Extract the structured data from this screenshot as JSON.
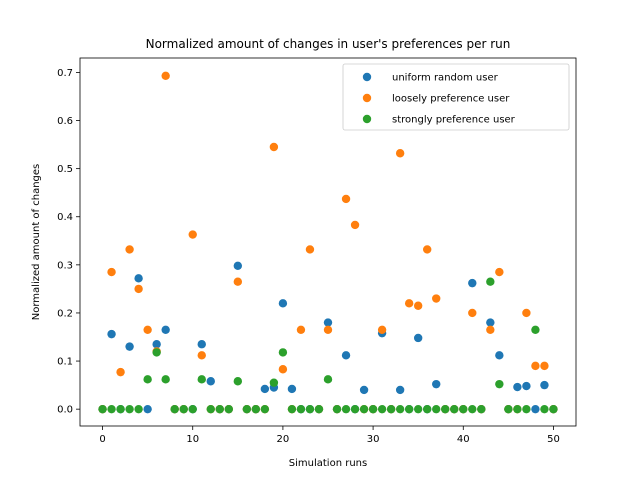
{
  "chart_data": {
    "type": "scatter",
    "title": "Normalized amount of changes in user's preferences per run",
    "xlabel": "Simulation runs",
    "ylabel": "Normalized amount of changes",
    "xlim": [
      -2.5,
      52.5
    ],
    "ylim": [
      -0.035,
      0.73
    ],
    "xticks": [
      "0",
      "10",
      "20",
      "30",
      "40",
      "50"
    ],
    "yticks": [
      "0.0",
      "0.1",
      "0.2",
      "0.3",
      "0.4",
      "0.5",
      "0.6",
      "0.7"
    ],
    "grid": false,
    "legend_position": "top-right",
    "x": [
      0,
      1,
      2,
      3,
      4,
      5,
      6,
      7,
      8,
      9,
      10,
      11,
      12,
      13,
      14,
      15,
      16,
      17,
      18,
      19,
      20,
      21,
      22,
      23,
      24,
      25,
      26,
      27,
      28,
      29,
      30,
      31,
      32,
      33,
      34,
      35,
      36,
      37,
      38,
      39,
      40,
      41,
      42,
      43,
      44,
      45,
      46,
      47,
      48,
      49,
      50
    ],
    "series": [
      {
        "name": "uniform random user",
        "color": "#1f77b4",
        "values": [
          0,
          0.156,
          0,
          0.13,
          0.272,
          0,
          0.135,
          0.165,
          0,
          0,
          0,
          0.135,
          0.058,
          0,
          0,
          0.298,
          0,
          0,
          0.042,
          0.045,
          0.22,
          0.042,
          0,
          0,
          0,
          0.18,
          0,
          0.112,
          0,
          0.04,
          0,
          0.158,
          0,
          0.04,
          0,
          0.148,
          0,
          0.052,
          0,
          0,
          0,
          0.262,
          0,
          0.18,
          0.112,
          0,
          0.046,
          0.048,
          0,
          0.05,
          0
        ]
      },
      {
        "name": "loosely preference user",
        "color": "#ff7f0e",
        "values": [
          0,
          0.285,
          0.077,
          0.332,
          0.25,
          0.165,
          0.12,
          0.693,
          0,
          0,
          0.363,
          0.112,
          0,
          0,
          0,
          0.265,
          0,
          0,
          0,
          0.545,
          0.083,
          0,
          0.165,
          0.332,
          0,
          0.165,
          0,
          0.437,
          0.383,
          0,
          0,
          0.165,
          0,
          0.532,
          0.22,
          0.215,
          0.332,
          0.23,
          0,
          0,
          0,
          0.2,
          0,
          0.165,
          0.285,
          0,
          0,
          0.2,
          0.09,
          0.09,
          0
        ]
      },
      {
        "name": "strongly preference user",
        "color": "#2ca02c",
        "values": [
          0,
          0,
          0,
          0,
          0,
          0.062,
          0.118,
          0.062,
          0,
          0,
          0,
          0.062,
          0,
          0,
          0,
          0.058,
          0,
          0,
          0,
          0.055,
          0.118,
          0,
          0,
          0,
          0,
          0.062,
          0,
          0,
          0,
          0,
          0,
          0,
          0,
          0,
          0,
          0,
          0,
          0,
          0,
          0,
          0,
          0,
          0,
          0.265,
          0.052,
          0,
          0,
          0,
          0.165,
          0,
          0
        ]
      }
    ]
  }
}
